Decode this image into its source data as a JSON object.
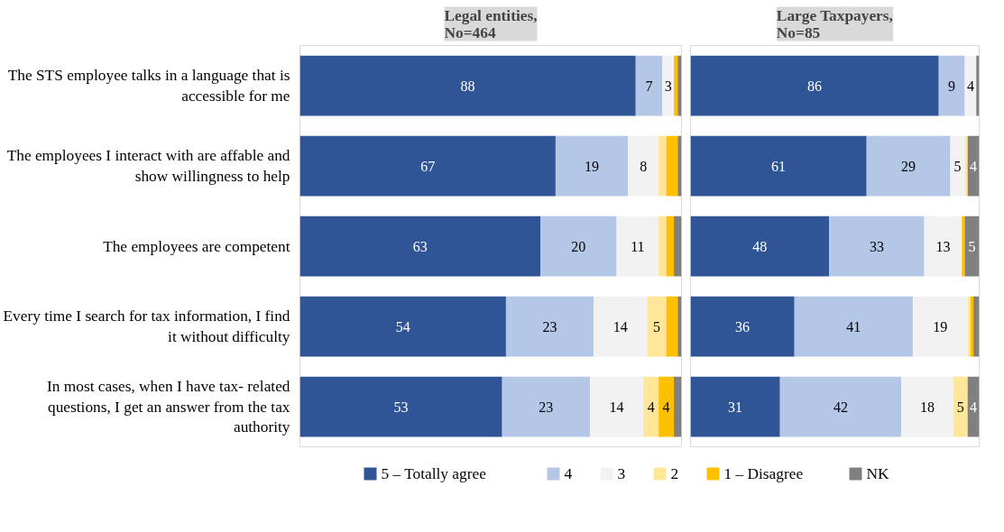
{
  "chart_data": [
    {
      "type": "bar",
      "orientation": "horizontal",
      "stacked": true,
      "title": "Legal entities, No=464",
      "legend": "bottom",
      "tick_labels": "y",
      "xlim": [
        0,
        100
      ],
      "grid": false,
      "categories": [
        "The STS employee talks in a language that is accessible for me",
        "The employees I interact with are affable and show willingness to help",
        "The employees are competent",
        "Every time I search for tax information, I find it without difficulty",
        "In most cases, when I have tax- related questions, I get an answer from the tax authority"
      ],
      "series": [
        {
          "name": "5 – Totally agree",
          "color": "#2f5597",
          "values": [
            88,
            67,
            63,
            54,
            53
          ],
          "value_labels": [
            "88",
            "67",
            "63",
            "54",
            "53"
          ]
        },
        {
          "name": "4",
          "color": "#b4c7e7",
          "values": [
            7,
            19,
            20,
            23,
            23
          ],
          "value_labels": [
            "7",
            "19",
            "20",
            "23",
            "23"
          ]
        },
        {
          "name": "3",
          "color": "#f2f2f2",
          "values": [
            3,
            8,
            11,
            14,
            14
          ],
          "value_labels": [
            "3",
            "8",
            "11",
            "14",
            "14"
          ]
        },
        {
          "name": "2",
          "color": "#ffe699",
          "values": [
            0,
            2,
            2,
            5,
            4
          ],
          "value_labels": [
            null,
            null,
            null,
            "5",
            "4"
          ]
        },
        {
          "name": "1 – Disagree",
          "color": "#ffc000",
          "values": [
            1,
            3,
            2,
            3,
            4
          ],
          "value_labels": [
            null,
            null,
            null,
            null,
            "4"
          ]
        },
        {
          "name": "NK",
          "color": "#808080",
          "values": [
            1,
            1,
            2,
            1,
            2
          ],
          "value_labels": [
            null,
            null,
            null,
            null,
            null
          ]
        }
      ]
    },
    {
      "type": "bar",
      "orientation": "horizontal",
      "stacked": true,
      "title": "Large Taxpayers, No=85",
      "legend": false,
      "tick_labels": false,
      "xlim": [
        0,
        100
      ],
      "grid": false,
      "categories": [
        null,
        null,
        null,
        null,
        null
      ],
      "series": [
        {
          "color": "#2f5597",
          "values": [
            86,
            61,
            48,
            36,
            31
          ],
          "value_labels": [
            "86",
            "61",
            "48",
            "36",
            "31"
          ]
        },
        {
          "color": "#b4c7e7",
          "values": [
            9,
            29,
            33,
            41,
            42
          ],
          "value_labels": [
            "9",
            "29",
            "33",
            "41",
            "42"
          ]
        },
        {
          "color": "#f2f2f2",
          "values": [
            4,
            5,
            13,
            19,
            18
          ],
          "value_labels": [
            "4",
            "5",
            "13",
            "19",
            "18"
          ]
        },
        {
          "color": "#ffe699",
          "values": [
            0,
            1,
            0,
            1,
            5
          ],
          "value_labels": [
            null,
            null,
            null,
            null,
            "5"
          ]
        },
        {
          "color": "#ffc000",
          "values": [
            0,
            0,
            1,
            1,
            0
          ],
          "value_labels": [
            null,
            null,
            null,
            null,
            null
          ]
        },
        {
          "color": "#808080",
          "values": [
            1,
            4,
            5,
            2,
            4
          ],
          "value_labels": [
            null,
            "4",
            "5",
            null,
            "4"
          ]
        }
      ]
    }
  ]
}
